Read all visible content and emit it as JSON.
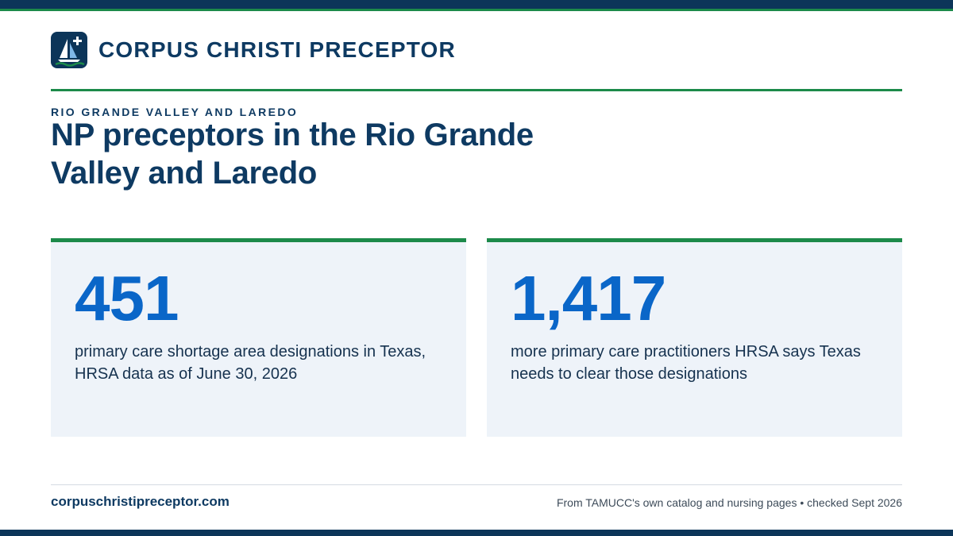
{
  "brand": {
    "name": "CORPUS CHRISTI PRECEPTOR",
    "logo_icon": "sailboat-cross-icon",
    "colors": {
      "navy": "#0c3559",
      "green": "#1c8a4a",
      "accent_blue": "#0a66c8",
      "card_bg": "#eef3f9"
    }
  },
  "header": {
    "eyebrow": "RIO GRANDE VALLEY AND LAREDO",
    "title": "NP preceptors in the Rio Grande Valley and Laredo"
  },
  "stats": [
    {
      "value": "451",
      "description": "primary care shortage area designations in Texas, HRSA data as of June 30, 2026"
    },
    {
      "value": "1,417",
      "description": "more primary care practitioners HRSA says Texas needs to clear those designations"
    }
  ],
  "footer": {
    "site": "corpuschristipreceptor.com",
    "source": "From TAMUCC's own catalog and nursing pages • checked Sept 2026"
  }
}
